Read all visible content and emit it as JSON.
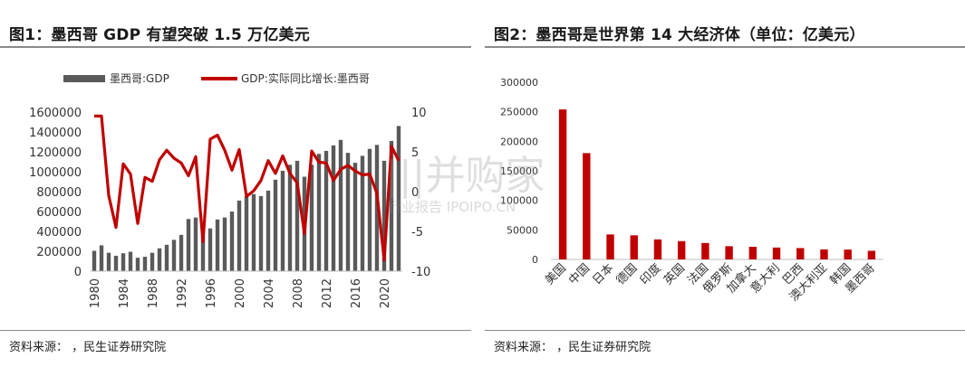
{
  "panel1": {
    "title": "图1：墨西哥 GDP 有望突破 1.5 万亿美元",
    "source": "资料来源：          ，民生证券研究院"
  },
  "panel2": {
    "title": "图2：墨西哥是世界第 14 大经济体（单位：亿美元）",
    "source": "资料来源：          ，民生证券研究院"
  },
  "watermark": {
    "main": "|||并购家",
    "sub": "行业报告 IPOIPO.CN"
  },
  "colors": {
    "bar_gray": "#5a5a5a",
    "line_red": "#c00000",
    "bar_red": "#c00000",
    "rule": "#8a8a8a"
  },
  "chart_data": [
    {
      "type": "bar+line",
      "title": "",
      "legend_position": "top",
      "x": [
        1980,
        1981,
        1982,
        1983,
        1984,
        1985,
        1986,
        1987,
        1988,
        1989,
        1990,
        1991,
        1992,
        1993,
        1994,
        1995,
        1996,
        1997,
        1998,
        1999,
        2000,
        2001,
        2002,
        2003,
        2004,
        2005,
        2006,
        2007,
        2008,
        2009,
        2010,
        2011,
        2012,
        2013,
        2014,
        2015,
        2016,
        2017,
        2018,
        2019,
        2020,
        2021,
        2022
      ],
      "x_tick_labels": [
        "1980",
        "1984",
        "1988",
        "1992",
        "1996",
        "2000",
        "2004",
        "2008",
        "2012",
        "2016",
        "2020"
      ],
      "y_left": {
        "lim": [
          0,
          1600000
        ],
        "ticks": [
          0,
          200000,
          400000,
          600000,
          800000,
          1000000,
          1200000,
          1400000,
          1600000
        ]
      },
      "y_right": {
        "lim": [
          -10,
          10
        ],
        "ticks": [
          -10,
          -5,
          0,
          5,
          10
        ]
      },
      "series": [
        {
          "name": "墨西哥:GDP",
          "kind": "bar",
          "axis": "left",
          "values": [
            205000,
            260000,
            185000,
            155000,
            180000,
            195000,
            135000,
            145000,
            185000,
            230000,
            265000,
            315000,
            365000,
            525000,
            540000,
            360000,
            430000,
            520000,
            540000,
            600000,
            710000,
            755000,
            775000,
            755000,
            810000,
            920000,
            1010000,
            1070000,
            1110000,
            950000,
            1070000,
            1180000,
            1210000,
            1265000,
            1320000,
            1190000,
            1090000,
            1160000,
            1230000,
            1270000,
            1110000,
            1310000,
            1460000
          ]
        },
        {
          "name": "GDP:实际同比增长:墨西哥",
          "kind": "line",
          "axis": "right",
          "values": [
            9.5,
            9.5,
            -0.5,
            -4.5,
            3.5,
            2.2,
            -4.0,
            1.8,
            1.3,
            4.0,
            5.2,
            4.2,
            3.6,
            2.0,
            4.4,
            -6.3,
            6.6,
            7.1,
            5.2,
            2.7,
            5.3,
            -0.6,
            0.1,
            1.4,
            3.9,
            2.3,
            4.5,
            2.3,
            1.1,
            -5.3,
            5.1,
            3.7,
            3.6,
            1.4,
            2.8,
            3.3,
            2.6,
            2.1,
            2.2,
            -0.2,
            -8.6,
            5.7,
            3.9
          ]
        }
      ]
    },
    {
      "type": "bar",
      "title": "",
      "categories": [
        "美国",
        "中国",
        "日本",
        "德国",
        "印度",
        "英国",
        "法国",
        "俄罗斯",
        "加拿大",
        "意大利",
        "巴西",
        "澳大利亚",
        "韩国",
        "墨西哥"
      ],
      "values": [
        254000,
        180000,
        42300,
        40800,
        33900,
        31000,
        27800,
        22400,
        21400,
        20100,
        19200,
        17000,
        16700,
        14600
      ],
      "ylim": [
        0,
        300000
      ],
      "yticks": [
        0,
        50000,
        100000,
        150000,
        200000,
        250000,
        300000
      ]
    }
  ]
}
